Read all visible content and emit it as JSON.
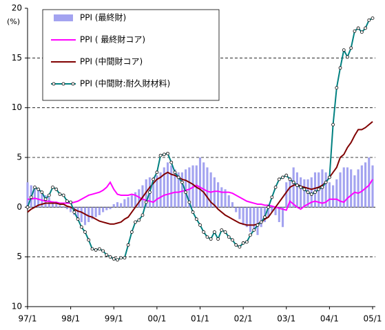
{
  "chart_data": {
    "type": "line",
    "ylabel": "(%)",
    "categories": [
      "97/1",
      null,
      null,
      null,
      null,
      null,
      null,
      null,
      null,
      null,
      null,
      null,
      "98/1",
      null,
      null,
      null,
      null,
      null,
      null,
      null,
      null,
      null,
      null,
      null,
      "99/1",
      null,
      null,
      null,
      null,
      null,
      null,
      null,
      null,
      null,
      null,
      null,
      "00/1",
      null,
      null,
      null,
      null,
      null,
      null,
      null,
      null,
      null,
      null,
      null,
      "01/1",
      null,
      null,
      null,
      null,
      null,
      null,
      null,
      null,
      null,
      null,
      null,
      "02/1",
      null,
      null,
      null,
      null,
      null,
      null,
      null,
      null,
      null,
      null,
      null,
      "03/1",
      null,
      null,
      null,
      null,
      null,
      null,
      null,
      null,
      null,
      null,
      null,
      "04/1",
      null,
      null,
      null,
      null,
      null,
      null,
      null,
      null,
      null,
      null,
      null,
      "05/1"
    ],
    "ylim": [
      -10,
      20
    ],
    "yticks": [
      {
        "value": -10,
        "label": "10"
      },
      {
        "value": -5,
        "label": "5"
      },
      0,
      5,
      10,
      15,
      20
    ],
    "grid": true,
    "legend": "upper left",
    "series": [
      {
        "name": "PPI (最終財)",
        "type": "bar",
        "color": "#a3a3f0",
        "values": [
          2.5,
          2.2,
          2,
          1.8,
          1.5,
          1.2,
          1,
          0.6,
          0.4,
          0.2,
          0.1,
          -0.2,
          -0.5,
          -0.8,
          -1.2,
          -1.5,
          -1.8,
          -1.5,
          -1.2,
          -1,
          -0.8,
          -0.5,
          -0.3,
          -0.2,
          0.3,
          0.5,
          0.4,
          0.8,
          1,
          1.2,
          1.5,
          1.8,
          2.2,
          2.8,
          3,
          2.8,
          3.2,
          3.5,
          4,
          4.5,
          4.2,
          3.8,
          3.5,
          3.5,
          3.8,
          4,
          4.2,
          4.2,
          5,
          4.5,
          4,
          3.5,
          3,
          2.5,
          2,
          1.8,
          1.2,
          0.5,
          -0.5,
          -1.2,
          -1.8,
          -2,
          -2.5,
          -2.2,
          -2.8,
          -2,
          -1.5,
          -1,
          -0.5,
          -0.8,
          -1.5,
          -2,
          2.5,
          3,
          4,
          3.5,
          3,
          2.8,
          2.8,
          3,
          3.5,
          3.5,
          3.8,
          3.5,
          2.5,
          2.2,
          2.8,
          3.5,
          4,
          4,
          3.8,
          3.2,
          3.8,
          4.2,
          4.5,
          5,
          4.2
        ]
      },
      {
        "name": "PPI ( 最終財コア)",
        "type": "line",
        "color": "#ff00ff",
        "values": [
          0.8,
          0.8,
          0.9,
          0.8,
          0.7,
          0.6,
          0.6,
          0.5,
          0.5,
          0.4,
          0.4,
          0.4,
          0.4,
          0.5,
          0.6,
          0.8,
          1,
          1.2,
          1.3,
          1.4,
          1.5,
          1.7,
          2,
          2.5,
          1.8,
          1.3,
          1.2,
          1.2,
          1.2,
          1.3,
          1.2,
          1,
          0.8,
          0.7,
          0.6,
          0.5,
          0.8,
          1,
          1.2,
          1.3,
          1.4,
          1.5,
          1.5,
          1.6,
          1.7,
          1.8,
          2,
          2.2,
          2,
          1.8,
          1.6,
          1.5,
          1.6,
          1.6,
          1.5,
          1.5,
          1.5,
          1.4,
          1.2,
          1,
          0.8,
          0.6,
          0.5,
          0.4,
          0.3,
          0.3,
          0.2,
          0.2,
          0.1,
          0,
          -0.1,
          -0.2,
          -0.3,
          0.6,
          0.3,
          0,
          -0.2,
          0.1,
          0.3,
          0.5,
          0.6,
          0.5,
          0.4,
          0.5,
          0.8,
          0.8,
          0.8,
          0.6,
          0.5,
          0.9,
          1.2,
          1.5,
          1.4,
          1.6,
          1.9,
          2.2,
          2.8
        ]
      },
      {
        "name": "PPI (中間財コア)",
        "type": "line",
        "color": "#800000",
        "values": [
          -0.5,
          -0.2,
          0,
          0.2,
          0.3,
          0.4,
          0.4,
          0.4,
          0.4,
          0.3,
          0.3,
          0.1,
          0,
          -0.2,
          -0.4,
          -0.5,
          -0.7,
          -0.9,
          -1,
          -1.2,
          -1.4,
          -1.5,
          -1.6,
          -1.7,
          -1.7,
          -1.6,
          -1.5,
          -1.2,
          -1,
          -0.5,
          0,
          0.5,
          1,
          1.5,
          2,
          2.4,
          2.8,
          3,
          3.3,
          3.5,
          3.3,
          3.2,
          3,
          2.8,
          2.7,
          2.5,
          2.3,
          2,
          1.8,
          1.5,
          1,
          0.5,
          0.2,
          -0.2,
          -0.5,
          -0.8,
          -1,
          -1.2,
          -1.4,
          -1.6,
          -1.7,
          -1.8,
          -1.8,
          -1.8,
          -1.7,
          -1.5,
          -1.2,
          -1,
          -0.5,
          0,
          0.5,
          1,
          1.5,
          2,
          2.2,
          2.3,
          2.1,
          2,
          1.9,
          1.8,
          1.9,
          2,
          2.2,
          2.5,
          3,
          3.5,
          4,
          5,
          5.3,
          6,
          6.5,
          7.2,
          7.8,
          7.8,
          8,
          8.3,
          8.6
        ]
      },
      {
        "name": "PPI (中間財:耐久財材料)",
        "type": "line",
        "markers": true,
        "color": "#008080",
        "values": [
          0,
          1,
          2,
          1.8,
          1.5,
          0.8,
          1.2,
          2,
          1.8,
          1.3,
          1.2,
          0.6,
          0.5,
          -0.5,
          -1.2,
          -2,
          -2.5,
          -3.3,
          -4.2,
          -4.3,
          -4.2,
          -4.4,
          -4.8,
          -5,
          -5.2,
          -5.3,
          -5.1,
          -5.1,
          -3.8,
          -2.5,
          -1.5,
          -1.3,
          -0.8,
          0.5,
          1.5,
          2.8,
          3.5,
          5.2,
          5.3,
          5.4,
          4.5,
          3.5,
          3,
          2.5,
          1.5,
          0.5,
          -0.5,
          -1.2,
          -1.8,
          -2.5,
          -3,
          -3.2,
          -2.5,
          -3.2,
          -2.3,
          -2.5,
          -3,
          -3.3,
          -3.8,
          -4,
          -3.6,
          -3.5,
          -2.8,
          -2.3,
          -1.8,
          -1.5,
          -1,
          0,
          1,
          2,
          2.8,
          3,
          3.2,
          2.8,
          2.5,
          2.2,
          2,
          1.8,
          1.5,
          1.3,
          1.5,
          1.8,
          2,
          2.5,
          3,
          8.3,
          12,
          14,
          15.8,
          15.1,
          16,
          17.7,
          18,
          17.6,
          18,
          18.8,
          19
        ]
      }
    ]
  }
}
